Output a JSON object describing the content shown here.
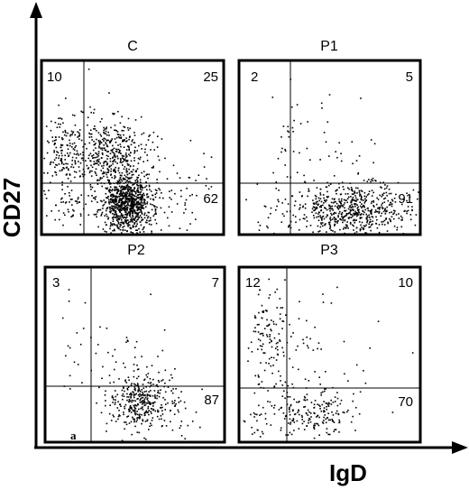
{
  "figure": {
    "x_axis_label": "IgD",
    "y_axis_label": "CD27",
    "footnote": "a"
  },
  "chart_data": [
    {
      "type": "scatter",
      "title": "C",
      "xlabel": "IgD",
      "ylabel": "CD27",
      "quadrant_percentages": {
        "upper_left": 10,
        "upper_right": 25,
        "lower_right": 62
      },
      "point_clusters": [
        {
          "region": "CD27+ IgD-",
          "density": "medium"
        },
        {
          "region": "CD27+ IgD+",
          "density": "high"
        },
        {
          "region": "CD27- IgD+",
          "density": "very high"
        }
      ]
    },
    {
      "type": "scatter",
      "title": "P1",
      "xlabel": "IgD",
      "ylabel": "CD27",
      "quadrant_percentages": {
        "upper_left": 2,
        "upper_right": 5,
        "lower_right": 91
      },
      "point_clusters": [
        {
          "region": "CD27+ IgD-",
          "density": "very low"
        },
        {
          "region": "CD27+ IgD+",
          "density": "low"
        },
        {
          "region": "CD27- IgD+",
          "density": "high"
        }
      ]
    },
    {
      "type": "scatter",
      "title": "P2",
      "xlabel": "IgD",
      "ylabel": "CD27",
      "quadrant_percentages": {
        "upper_left": 3,
        "upper_right": 7,
        "lower_right": 87
      },
      "point_clusters": [
        {
          "region": "CD27+ IgD-",
          "density": "very low"
        },
        {
          "region": "CD27+ IgD+",
          "density": "low"
        },
        {
          "region": "CD27- IgD+",
          "density": "high"
        }
      ]
    },
    {
      "type": "scatter",
      "title": "P3",
      "xlabel": "IgD",
      "ylabel": "CD27",
      "quadrant_percentages": {
        "upper_left": 12,
        "upper_right": 10,
        "lower_right": 70
      },
      "point_clusters": [
        {
          "region": "CD27+ IgD-",
          "density": "medium"
        },
        {
          "region": "CD27+ IgD+",
          "density": "low"
        },
        {
          "region": "CD27- IgD+",
          "density": "medium"
        }
      ]
    }
  ]
}
